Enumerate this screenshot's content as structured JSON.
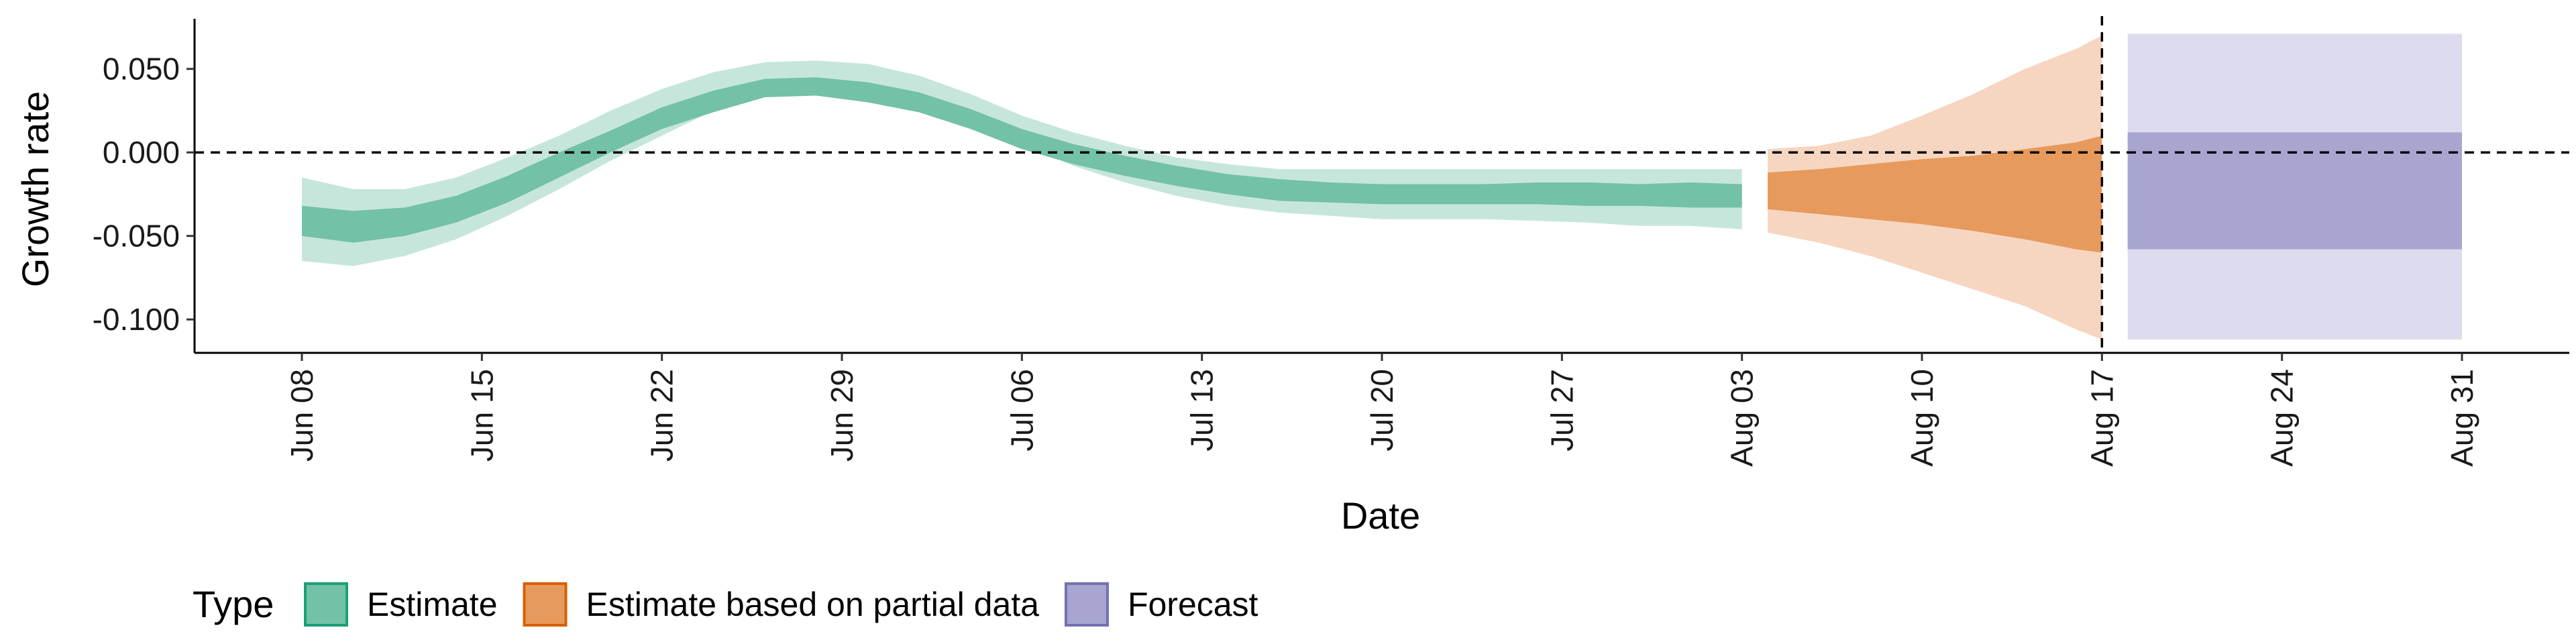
{
  "chart_data": {
    "type": "area",
    "xlabel": "Date",
    "ylabel": "Growth rate",
    "ylim": [
      -0.12,
      0.08
    ],
    "y_ticks": [
      0.05,
      0.0,
      -0.05,
      -0.1
    ],
    "y_tick_labels": [
      "0.050",
      "0.000",
      "-0.050",
      "-0.100"
    ],
    "x_range": [
      "2021-06-08",
      "2021-08-31"
    ],
    "x_ticks": [
      "2021-06-08",
      "2021-06-15",
      "2021-06-22",
      "2021-06-29",
      "2021-07-06",
      "2021-07-13",
      "2021-07-20",
      "2021-07-27",
      "2021-08-03",
      "2021-08-10",
      "2021-08-17",
      "2021-08-24",
      "2021-08-31"
    ],
    "x_tick_labels": [
      "Jun 08",
      "Jun 15",
      "Jun 22",
      "Jun 29",
      "Jul 06",
      "Jul 13",
      "Jul 20",
      "Jul 27",
      "Aug 03",
      "Aug 10",
      "Aug 17",
      "Aug 24",
      "Aug 31"
    ],
    "hline": 0.0,
    "vline": "2021-08-17",
    "grid": false,
    "legend": {
      "title": "Type",
      "placement": "bottom-left",
      "entries": [
        {
          "label": "Estimate",
          "fill": "#73c1a7",
          "stroke": "#1b9e77"
        },
        {
          "label": "Estimate based on partial data",
          "fill": "#e79a5d",
          "stroke": "#d95f02"
        },
        {
          "label": "Forecast",
          "fill": "#a8a6d1",
          "stroke": "#7570b3"
        }
      ]
    },
    "series": [
      {
        "name": "Estimate",
        "color_inner": "#73c1a7",
        "color_outer": "#c6e6dc",
        "x": [
          "2021-06-08",
          "2021-06-10",
          "2021-06-12",
          "2021-06-14",
          "2021-06-16",
          "2021-06-18",
          "2021-06-20",
          "2021-06-22",
          "2021-06-24",
          "2021-06-26",
          "2021-06-28",
          "2021-06-30",
          "2021-07-02",
          "2021-07-04",
          "2021-07-06",
          "2021-07-08",
          "2021-07-10",
          "2021-07-12",
          "2021-07-14",
          "2021-07-16",
          "2021-07-18",
          "2021-07-20",
          "2021-07-22",
          "2021-07-24",
          "2021-07-26",
          "2021-07-28",
          "2021-07-30",
          "2021-08-01",
          "2021-08-03"
        ],
        "lower_outer": [
          -0.065,
          -0.068,
          -0.062,
          -0.052,
          -0.038,
          -0.022,
          -0.005,
          0.01,
          0.025,
          0.035,
          0.038,
          0.035,
          0.03,
          0.02,
          0.005,
          -0.008,
          -0.018,
          -0.026,
          -0.032,
          -0.036,
          -0.038,
          -0.04,
          -0.04,
          -0.04,
          -0.041,
          -0.042,
          -0.044,
          -0.044,
          -0.046
        ],
        "lower_inner": [
          -0.05,
          -0.054,
          -0.05,
          -0.042,
          -0.03,
          -0.015,
          0.0,
          0.014,
          0.024,
          0.033,
          0.034,
          0.03,
          0.024,
          0.014,
          0.002,
          -0.007,
          -0.014,
          -0.02,
          -0.025,
          -0.029,
          -0.03,
          -0.031,
          -0.031,
          -0.031,
          -0.031,
          -0.032,
          -0.032,
          -0.033,
          -0.033
        ],
        "upper_inner": [
          -0.032,
          -0.035,
          -0.033,
          -0.026,
          -0.014,
          0.0,
          0.013,
          0.027,
          0.037,
          0.044,
          0.045,
          0.042,
          0.036,
          0.026,
          0.014,
          0.005,
          -0.002,
          -0.008,
          -0.013,
          -0.016,
          -0.018,
          -0.019,
          -0.019,
          -0.019,
          -0.018,
          -0.018,
          -0.019,
          -0.018,
          -0.019
        ],
        "upper_outer": [
          -0.015,
          -0.022,
          -0.022,
          -0.015,
          -0.003,
          0.01,
          0.025,
          0.038,
          0.048,
          0.054,
          0.055,
          0.053,
          0.046,
          0.035,
          0.022,
          0.012,
          0.004,
          -0.003,
          -0.007,
          -0.01,
          -0.01,
          -0.01,
          -0.01,
          -0.01,
          -0.01,
          -0.01,
          -0.01,
          -0.01,
          -0.01
        ]
      },
      {
        "name": "Estimate based on partial data",
        "color_inner": "#e79a5d",
        "color_outer": "#f6d6c0",
        "x": [
          "2021-08-04",
          "2021-08-06",
          "2021-08-08",
          "2021-08-10",
          "2021-08-12",
          "2021-08-14",
          "2021-08-16",
          "2021-08-17"
        ],
        "lower_outer": [
          -0.048,
          -0.054,
          -0.062,
          -0.072,
          -0.082,
          -0.092,
          -0.106,
          -0.112
        ],
        "lower_inner": [
          -0.034,
          -0.037,
          -0.04,
          -0.043,
          -0.047,
          -0.052,
          -0.058,
          -0.06
        ],
        "upper_inner": [
          -0.012,
          -0.01,
          -0.007,
          -0.004,
          -0.002,
          0.002,
          0.006,
          0.01
        ],
        "upper_outer": [
          0.002,
          0.004,
          0.01,
          0.022,
          0.035,
          0.05,
          0.062,
          0.07
        ]
      },
      {
        "name": "Forecast",
        "color_inner": "#a8a6d1",
        "color_outer": "#dcdcee",
        "x": [
          "2021-08-18",
          "2021-08-31"
        ],
        "lower_outer": [
          -0.112,
          -0.112
        ],
        "lower_inner": [
          -0.058,
          -0.058
        ],
        "upper_inner": [
          0.012,
          0.012
        ],
        "upper_outer": [
          0.071,
          0.071
        ]
      }
    ]
  }
}
